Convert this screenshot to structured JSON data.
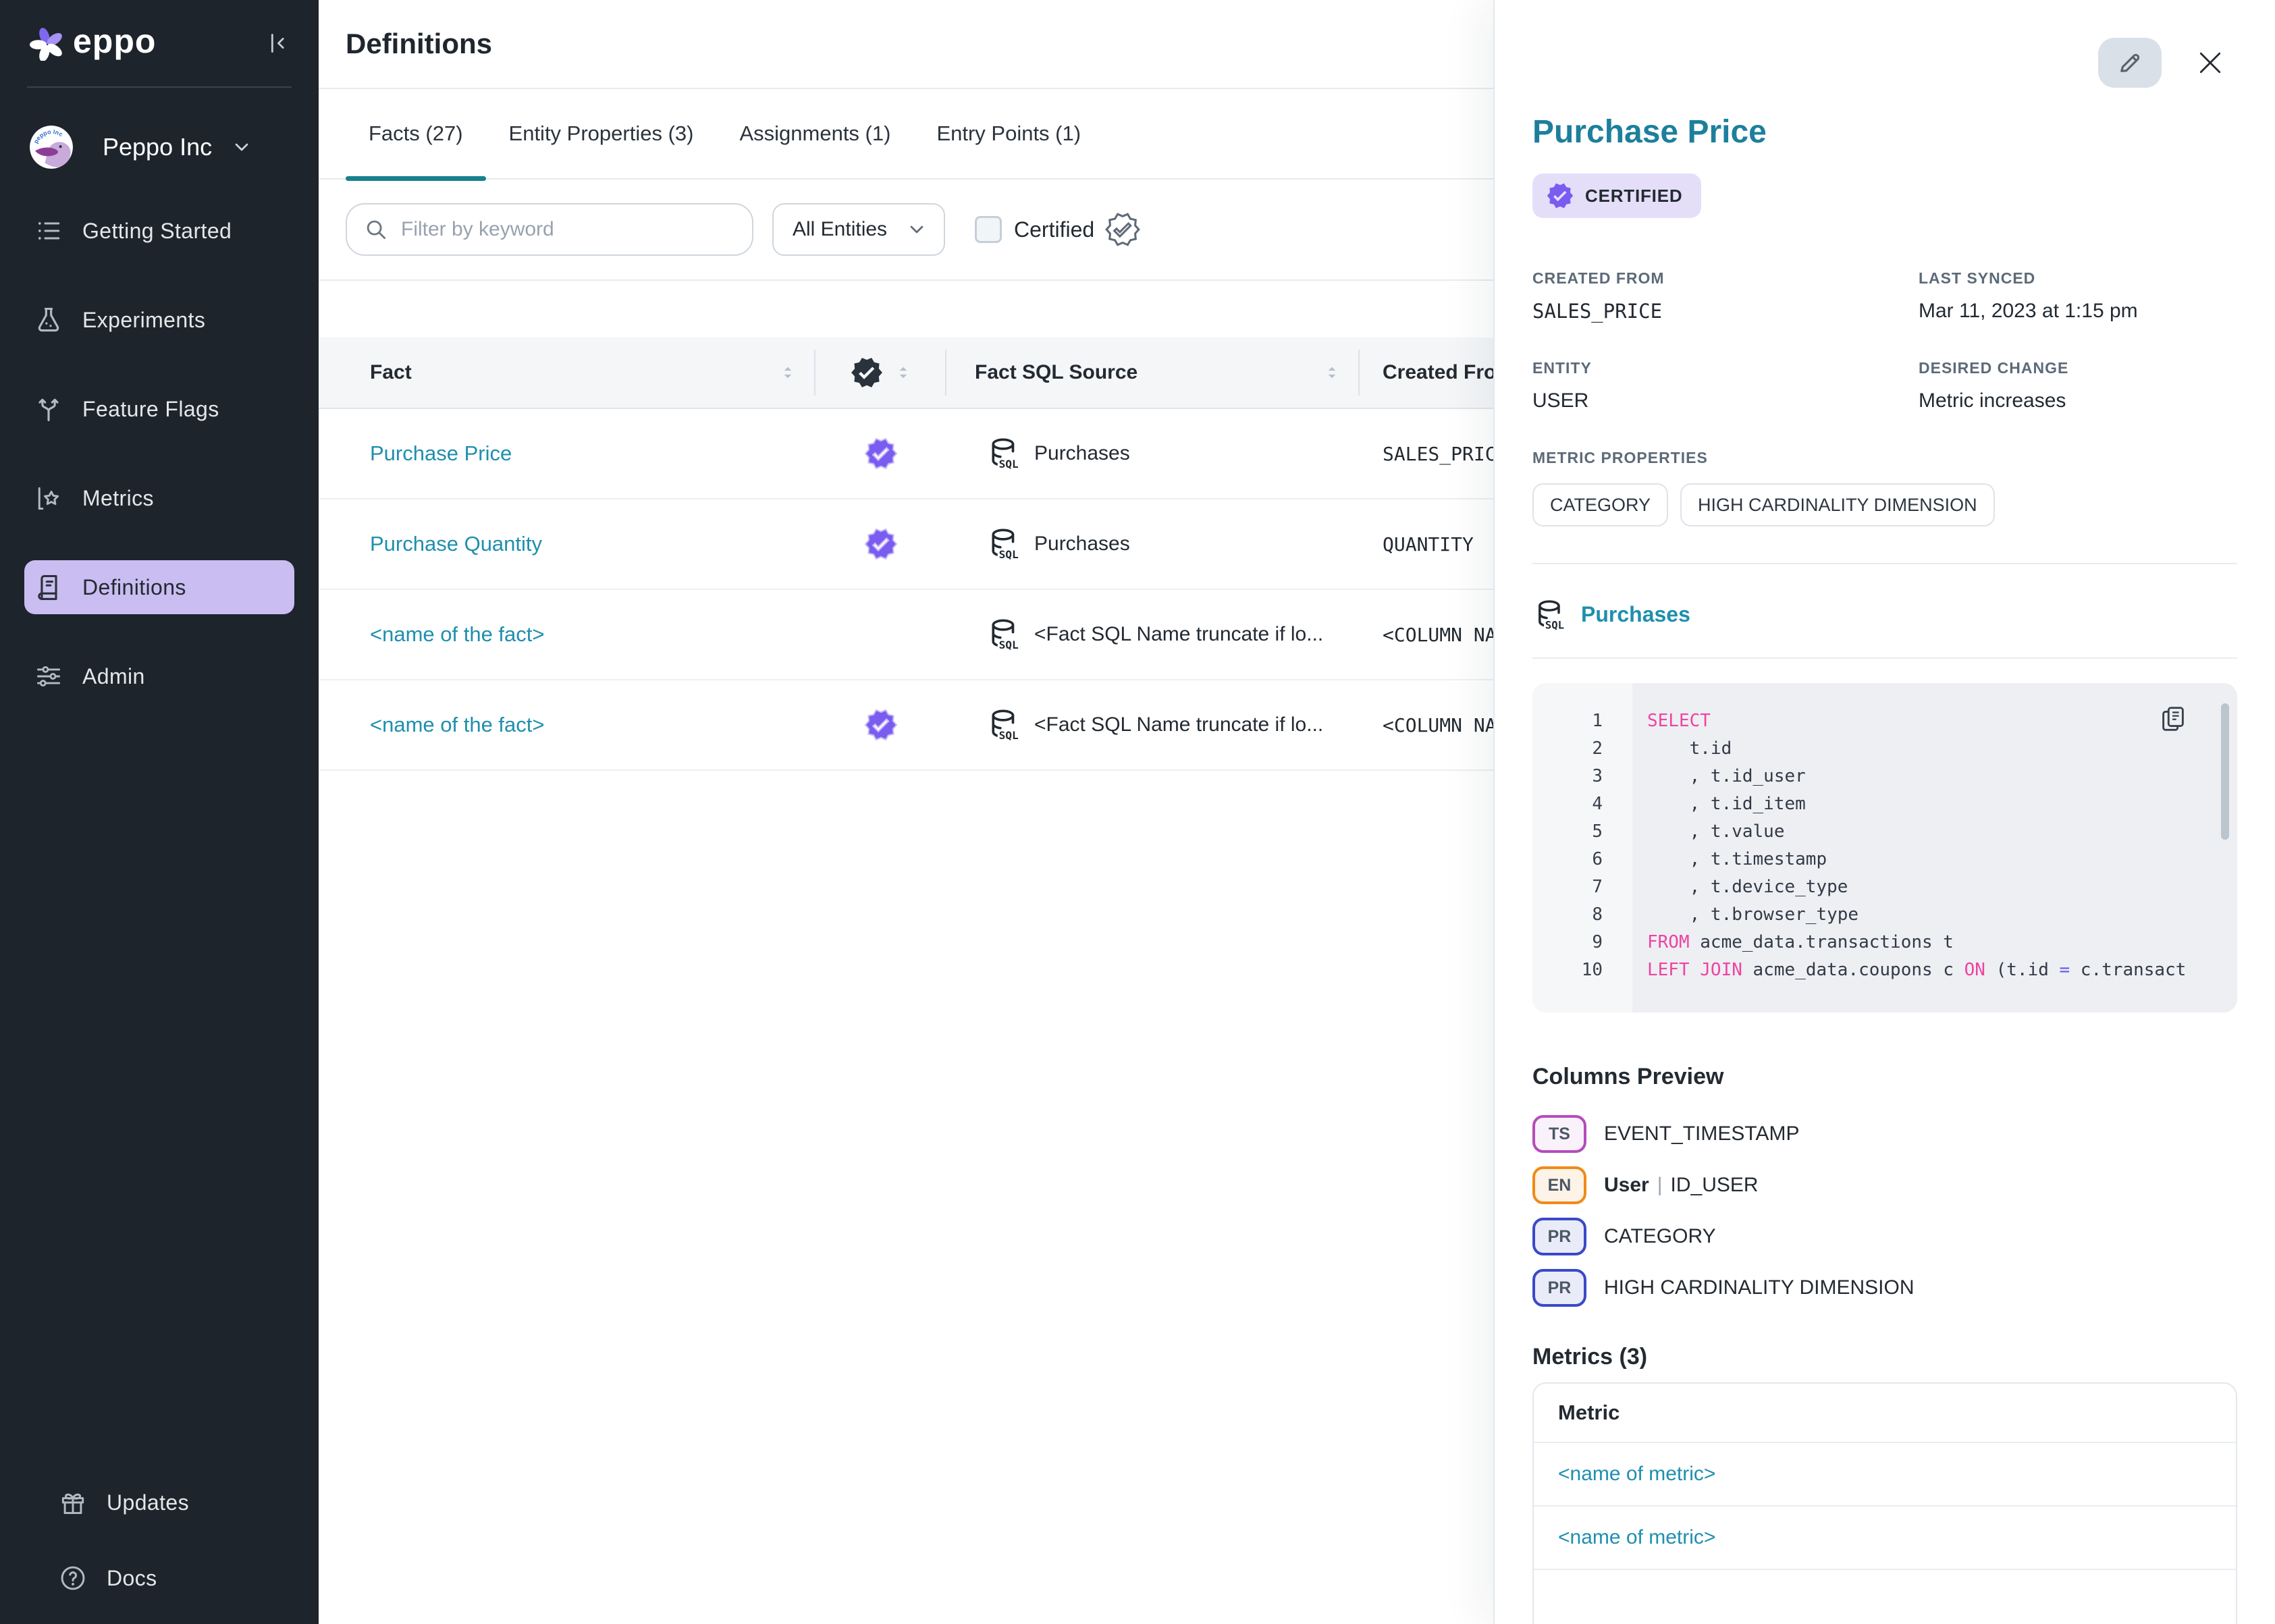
{
  "colors": {
    "accent_teal": "#1f8fad",
    "tab_underline": "#17818f",
    "certified_purple": "#7a5cf0",
    "sidebar_bg": "#1e242c",
    "active_item_bg": "#c9bdf1",
    "sql_keyword": "#ef43a2",
    "sql_operator": "#6159e8"
  },
  "sidebar": {
    "logo_text": "eppo",
    "org": {
      "name": "Peppo Inc"
    },
    "items": [
      {
        "label": "Getting Started",
        "icon": "list",
        "active": false
      },
      {
        "label": "Experiments",
        "icon": "flask",
        "active": false
      },
      {
        "label": "Feature Flags",
        "icon": "branch",
        "active": false
      },
      {
        "label": "Metrics",
        "icon": "metrics",
        "active": false
      },
      {
        "label": "Definitions",
        "icon": "book",
        "active": true
      },
      {
        "label": "Admin",
        "icon": "sliders",
        "active": false
      }
    ],
    "footer_items": [
      {
        "label": "Updates",
        "icon": "gift"
      },
      {
        "label": "Docs",
        "icon": "help"
      }
    ]
  },
  "page": {
    "title": "Definitions"
  },
  "tabs": [
    {
      "label": "Facts (27)",
      "active": true
    },
    {
      "label": "Entity Properties (3)",
      "active": false
    },
    {
      "label": "Assignments (1)",
      "active": false
    },
    {
      "label": "Entry Points (1)",
      "active": false
    }
  ],
  "filters": {
    "search_placeholder": "Filter by keyword",
    "entity_select_value": "All Entities",
    "certified_label": "Certified",
    "certified_checked": false
  },
  "table": {
    "columns": [
      {
        "label": "Fact",
        "sortable": true
      },
      {
        "label": "",
        "icon": "certified-badge",
        "sortable": true
      },
      {
        "label": "Fact SQL Source",
        "sortable": true
      },
      {
        "label": "Created From",
        "sortable": false
      }
    ],
    "rows": [
      {
        "fact": "Purchase Price",
        "certified": true,
        "sql_source": "Purchases",
        "created_from": "SALES_PRICE"
      },
      {
        "fact": "Purchase Quantity",
        "certified": true,
        "sql_source": "Purchases",
        "created_from": "QUANTITY"
      },
      {
        "fact": "<name of the fact>",
        "certified": false,
        "sql_source": "<Fact SQL Name truncate if lo...",
        "created_from": "<COLUMN NAME>"
      },
      {
        "fact": "<name of the fact>",
        "certified": true,
        "sql_source": "<Fact SQL Name truncate if lo...",
        "created_from": "<COLUMN NAME>"
      }
    ]
  },
  "panel": {
    "title": "Purchase Price",
    "certified_badge": "CERTIFIED",
    "meta": [
      {
        "label": "CREATED FROM",
        "value": "SALES_PRICE",
        "mono": true
      },
      {
        "label": "LAST SYNCED",
        "value": "Mar 11, 2023 at 1:15 pm",
        "mono": false
      },
      {
        "label": "ENTITY",
        "value": "USER",
        "mono": false
      },
      {
        "label": "DESIRED CHANGE",
        "value": "Metric increases",
        "mono": false
      }
    ],
    "metric_properties": {
      "label": "METRIC PROPERTIES",
      "chips": [
        "CATEGORY",
        "HIGH CARDINALITY DIMENSION"
      ]
    },
    "sql_source_link": "Purchases",
    "sql": {
      "lines": [
        [
          [
            "kw",
            "SELECT"
          ]
        ],
        [
          [
            "pl",
            "    t.id"
          ]
        ],
        [
          [
            "pl",
            "    , t.id_user"
          ]
        ],
        [
          [
            "pl",
            "    , t.id_item"
          ]
        ],
        [
          [
            "pl",
            "    , t.value"
          ]
        ],
        [
          [
            "pl",
            "    , t.timestamp"
          ]
        ],
        [
          [
            "pl",
            "    , t.device_type"
          ]
        ],
        [
          [
            "pl",
            "    , t.browser_type"
          ]
        ],
        [
          [
            "kw",
            "FROM"
          ],
          [
            "pl",
            " acme_data.transactions t"
          ]
        ],
        [
          [
            "kw",
            "LEFT"
          ],
          [
            "pl",
            " "
          ],
          [
            "kw",
            "JOIN"
          ],
          [
            "pl",
            " acme_data.coupons c "
          ],
          [
            "kw",
            "ON"
          ],
          [
            "pl",
            " (t.id "
          ],
          [
            "op",
            "="
          ],
          [
            "pl",
            " c.transact"
          ]
        ]
      ]
    },
    "columns_preview": {
      "title": "Columns Preview",
      "items": [
        {
          "badge": "TS",
          "type": "ts",
          "label": "EVENT_TIMESTAMP"
        },
        {
          "badge": "EN",
          "type": "en",
          "bold": "User",
          "sep": "|",
          "label": "ID_USER"
        },
        {
          "badge": "PR",
          "type": "pr",
          "label": "CATEGORY"
        },
        {
          "badge": "PR",
          "type": "pr",
          "label": "HIGH CARDINALITY DIMENSION"
        }
      ]
    },
    "metrics": {
      "title": "Metrics (3)",
      "column_header": "Metric",
      "rows": [
        "<name of metric>",
        "<name of metric>"
      ]
    }
  }
}
